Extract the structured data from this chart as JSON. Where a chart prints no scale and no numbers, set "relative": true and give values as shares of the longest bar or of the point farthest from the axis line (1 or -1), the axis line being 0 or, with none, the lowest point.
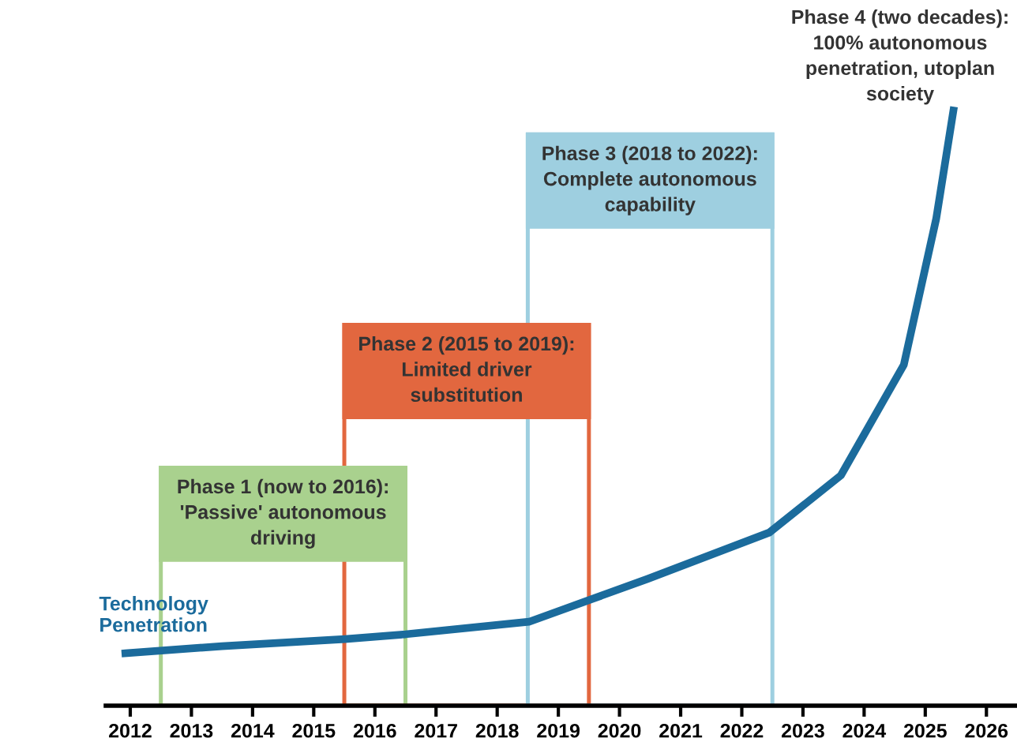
{
  "chart_data": {
    "type": "line",
    "relative": true,
    "x": [
      2011.92,
      2013.5,
      2015.51,
      2016.5,
      2018.52,
      2020.46,
      2022.45,
      2023.62,
      2024.65,
      2025.18,
      2025.46
    ],
    "series": [
      {
        "name": "Technology\nPenetration",
        "color": "#1b6b9c",
        "values": [
          0.088,
          0.1,
          0.112,
          0.12,
          0.141,
          0.213,
          0.291,
          0.387,
          0.573,
          0.819,
          1
        ]
      }
    ],
    "xlim": [
      2011.6,
      2026.5
    ],
    "xticks": [
      2012,
      2013,
      2014,
      2015,
      2016,
      2017,
      2018,
      2019,
      2020,
      2021,
      2022,
      2023,
      2024,
      2025,
      2026
    ],
    "bands": [
      {
        "axis": "x",
        "from": 2012.5,
        "to": 2016.5,
        "label": "Phase 1 (now to 2016):\n'Passive' autonomous\ndriving",
        "color": "#a9d18e"
      },
      {
        "axis": "x",
        "from": 2015.5,
        "to": 2019.5,
        "label": "Phase 2 (2015 to 2019):\nLimited driver\nsubstitution",
        "color": "#e2673f"
      },
      {
        "axis": "x",
        "from": 2018.5,
        "to": 2022.5,
        "label": "Phase 3 (2018 to 2022):\nComplete autonomous\ncapability",
        "color": "#9ecfe0"
      }
    ],
    "annotations": [
      "Phase 4 (two decades):\n100% autonomous\npenetration, utoplan\nsociety"
    ],
    "grid": false,
    "legend": false,
    "marker": "none",
    "line_style": "solid"
  }
}
